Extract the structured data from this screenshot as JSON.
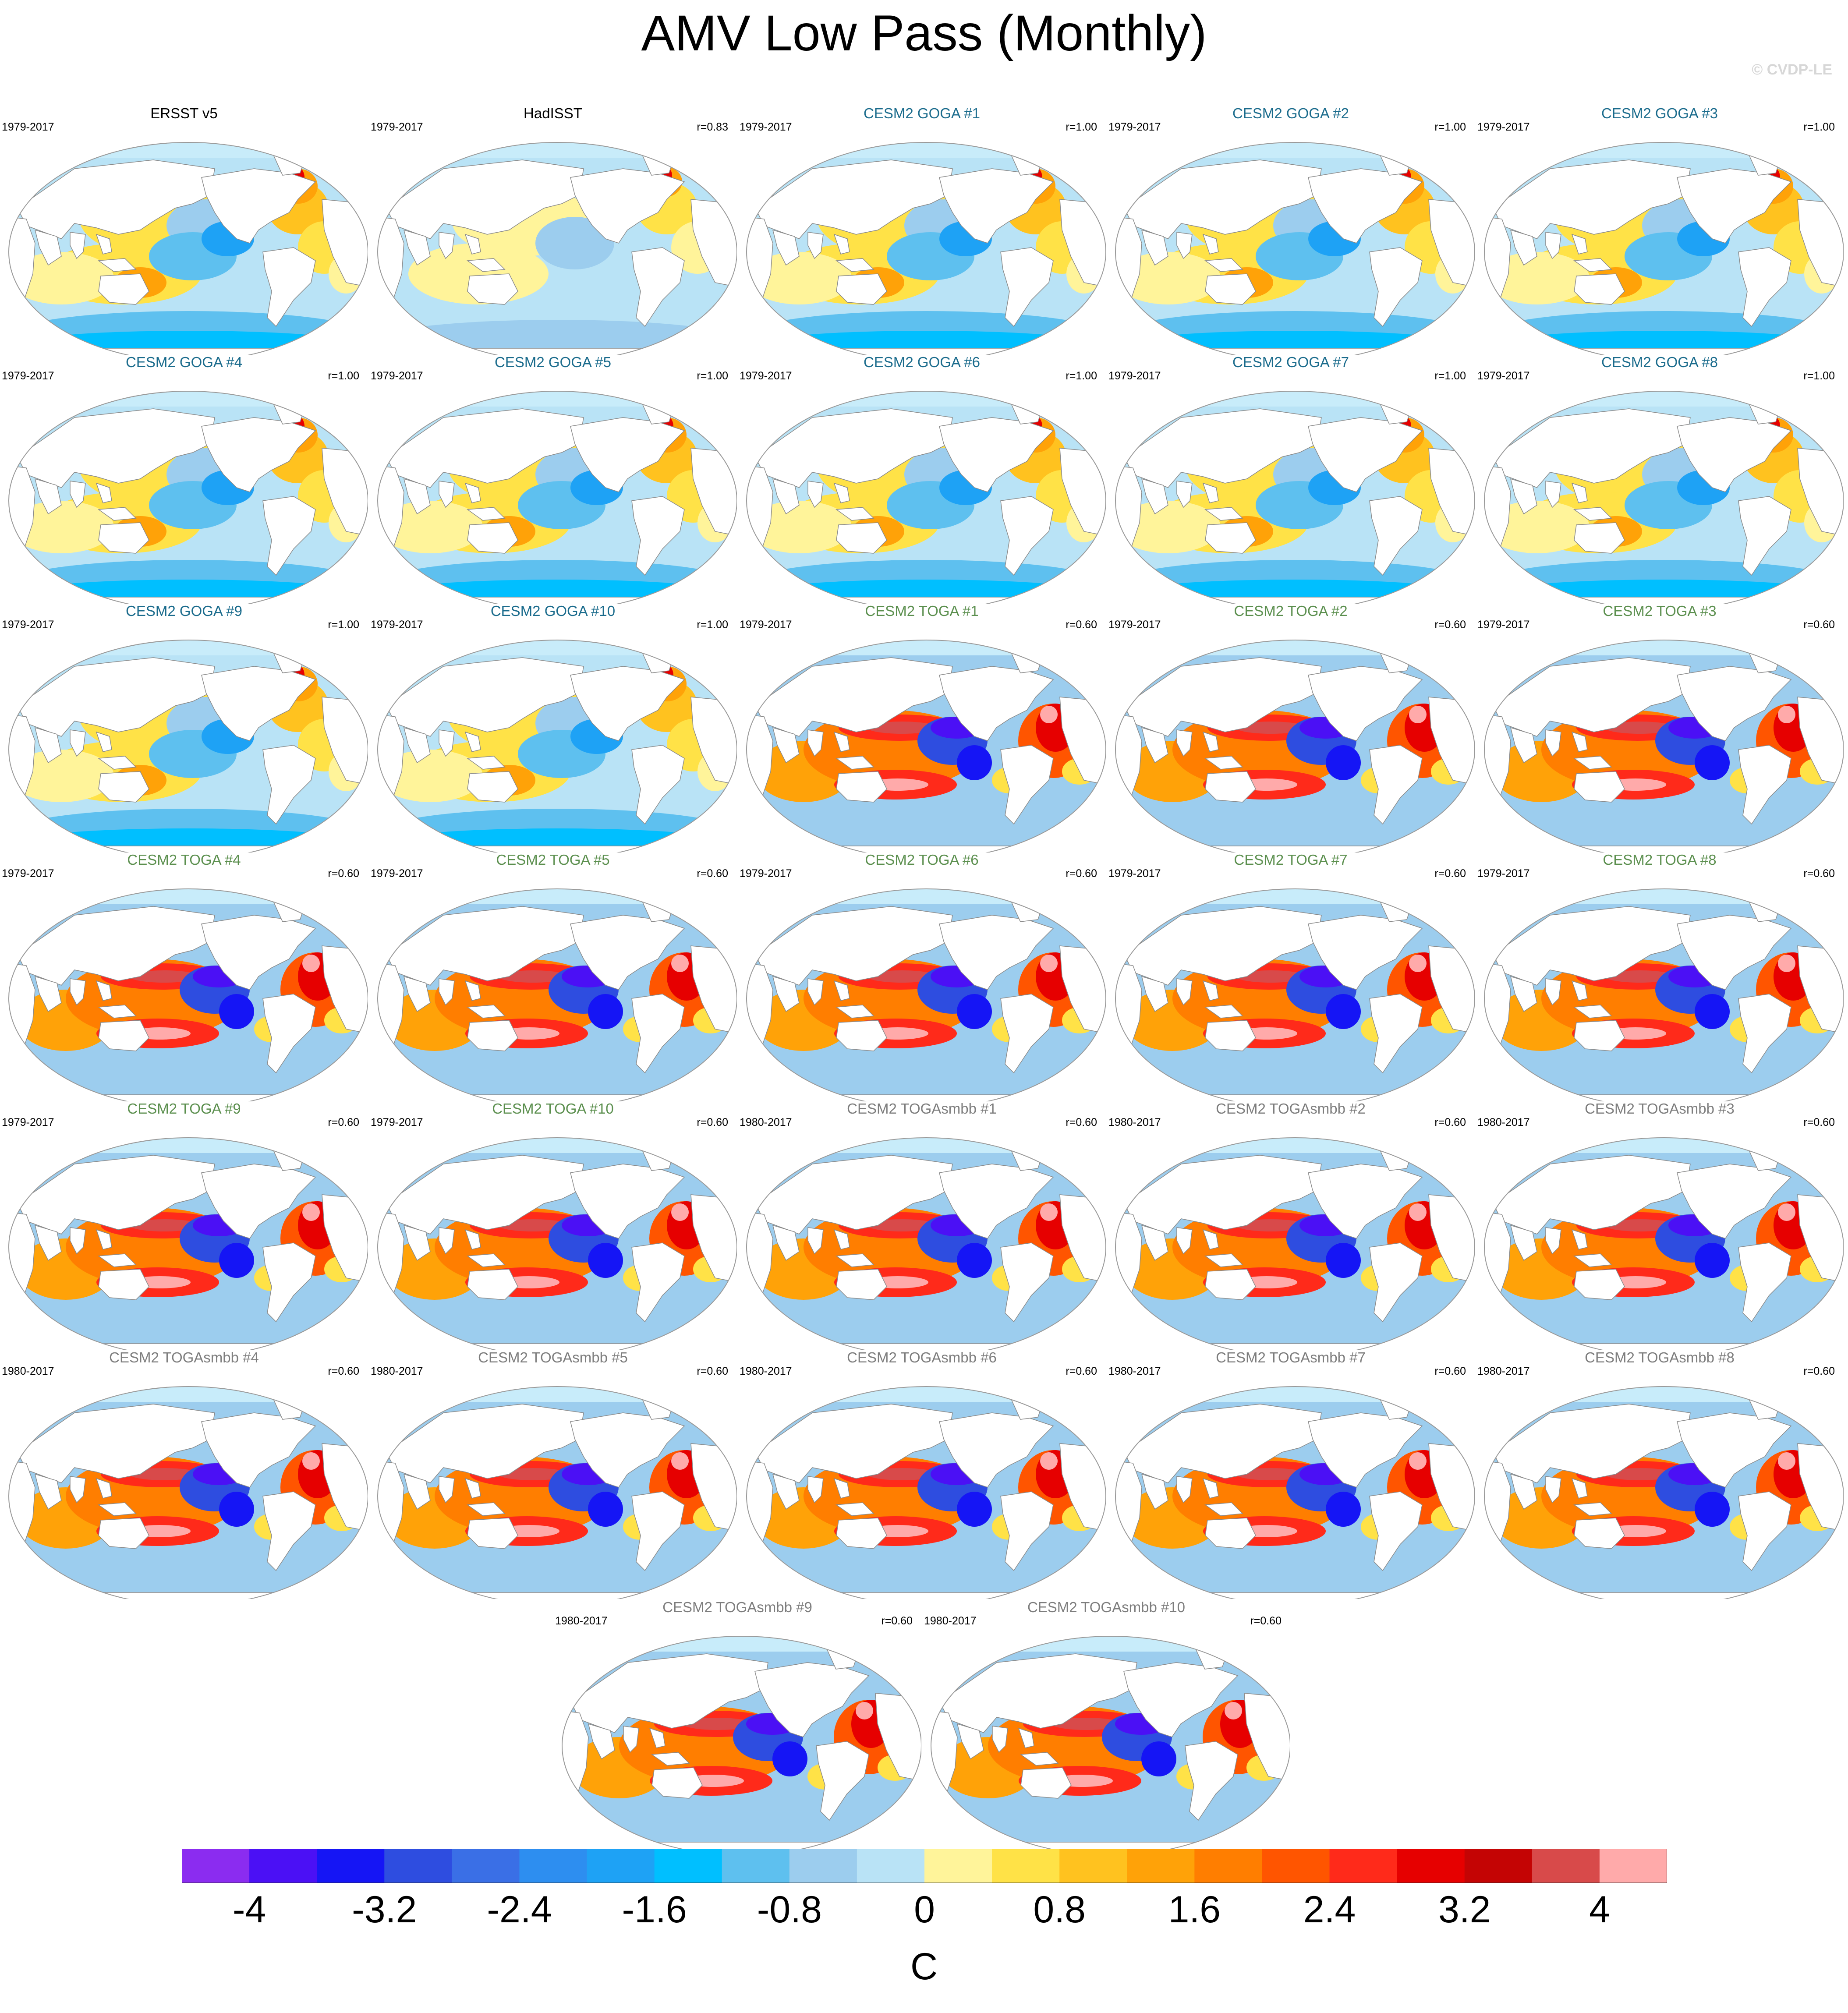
{
  "title": "AMV Low Pass (Monthly)",
  "watermark": "© CVDP-LE",
  "colors": {
    "obs_title": "#000000",
    "goga_title": "#1a6b8c",
    "toga_title": "#5b8f4e",
    "togasmbb_title": "#7d7d7d",
    "land": "#ffffff",
    "coast": "#8a8a8a",
    "ice_band": "#c8ecfa"
  },
  "panels": [
    {
      "title": "ERSST v5",
      "years": "1979-2017",
      "r": "",
      "group": "obs",
      "pattern": "obs"
    },
    {
      "title": "HadISST",
      "years": "1979-2017",
      "r": "r=0.83",
      "group": "obs",
      "pattern": "obs_weak"
    },
    {
      "title": "CESM2 GOGA #1",
      "years": "1979-2017",
      "r": "r=1.00",
      "group": "goga",
      "pattern": "obs"
    },
    {
      "title": "CESM2 GOGA #2",
      "years": "1979-2017",
      "r": "r=1.00",
      "group": "goga",
      "pattern": "obs"
    },
    {
      "title": "CESM2 GOGA #3",
      "years": "1979-2017",
      "r": "r=1.00",
      "group": "goga",
      "pattern": "obs"
    },
    {
      "title": "CESM2 GOGA #4",
      "years": "1979-2017",
      "r": "r=1.00",
      "group": "goga",
      "pattern": "obs"
    },
    {
      "title": "CESM2 GOGA #5",
      "years": "1979-2017",
      "r": "r=1.00",
      "group": "goga",
      "pattern": "obs"
    },
    {
      "title": "CESM2 GOGA #6",
      "years": "1979-2017",
      "r": "r=1.00",
      "group": "goga",
      "pattern": "obs"
    },
    {
      "title": "CESM2 GOGA #7",
      "years": "1979-2017",
      "r": "r=1.00",
      "group": "goga",
      "pattern": "obs"
    },
    {
      "title": "CESM2 GOGA #8",
      "years": "1979-2017",
      "r": "r=1.00",
      "group": "goga",
      "pattern": "obs"
    },
    {
      "title": "CESM2 GOGA #9",
      "years": "1979-2017",
      "r": "r=1.00",
      "group": "goga",
      "pattern": "obs"
    },
    {
      "title": "CESM2 GOGA #10",
      "years": "1979-2017",
      "r": "r=1.00",
      "group": "goga",
      "pattern": "obs"
    },
    {
      "title": "CESM2 TOGA #1",
      "years": "1979-2017",
      "r": "r=0.60",
      "group": "toga",
      "pattern": "model"
    },
    {
      "title": "CESM2 TOGA #2",
      "years": "1979-2017",
      "r": "r=0.60",
      "group": "toga",
      "pattern": "model"
    },
    {
      "title": "CESM2 TOGA #3",
      "years": "1979-2017",
      "r": "r=0.60",
      "group": "toga",
      "pattern": "model"
    },
    {
      "title": "CESM2 TOGA #4",
      "years": "1979-2017",
      "r": "r=0.60",
      "group": "toga",
      "pattern": "model"
    },
    {
      "title": "CESM2 TOGA #5",
      "years": "1979-2017",
      "r": "r=0.60",
      "group": "toga",
      "pattern": "model"
    },
    {
      "title": "CESM2 TOGA #6",
      "years": "1979-2017",
      "r": "r=0.60",
      "group": "toga",
      "pattern": "model"
    },
    {
      "title": "CESM2 TOGA #7",
      "years": "1979-2017",
      "r": "r=0.60",
      "group": "toga",
      "pattern": "model"
    },
    {
      "title": "CESM2 TOGA #8",
      "years": "1979-2017",
      "r": "r=0.60",
      "group": "toga",
      "pattern": "model"
    },
    {
      "title": "CESM2 TOGA #9",
      "years": "1979-2017",
      "r": "r=0.60",
      "group": "toga",
      "pattern": "model"
    },
    {
      "title": "CESM2 TOGA #10",
      "years": "1979-2017",
      "r": "r=0.60",
      "group": "toga",
      "pattern": "model"
    },
    {
      "title": "CESM2 TOGAsmbb #1",
      "years": "1980-2017",
      "r": "r=0.60",
      "group": "togasmbb",
      "pattern": "model"
    },
    {
      "title": "CESM2 TOGAsmbb #2",
      "years": "1980-2017",
      "r": "r=0.60",
      "group": "togasmbb",
      "pattern": "model"
    },
    {
      "title": "CESM2 TOGAsmbb #3",
      "years": "1980-2017",
      "r": "r=0.60",
      "group": "togasmbb",
      "pattern": "model"
    },
    {
      "title": "CESM2 TOGAsmbb #4",
      "years": "1980-2017",
      "r": "r=0.60",
      "group": "togasmbb",
      "pattern": "model"
    },
    {
      "title": "CESM2 TOGAsmbb #5",
      "years": "1980-2017",
      "r": "r=0.60",
      "group": "togasmbb",
      "pattern": "model"
    },
    {
      "title": "CESM2 TOGAsmbb #6",
      "years": "1980-2017",
      "r": "r=0.60",
      "group": "togasmbb",
      "pattern": "model"
    },
    {
      "title": "CESM2 TOGAsmbb #7",
      "years": "1980-2017",
      "r": "r=0.60",
      "group": "togasmbb",
      "pattern": "model"
    },
    {
      "title": "CESM2 TOGAsmbb #8",
      "years": "1980-2017",
      "r": "r=0.60",
      "group": "togasmbb",
      "pattern": "model"
    },
    {
      "title": "CESM2 TOGAsmbb #9",
      "years": "1980-2017",
      "r": "r=0.60",
      "group": "togasmbb",
      "pattern": "model"
    },
    {
      "title": "CESM2 TOGAsmbb #10",
      "years": "1980-2017",
      "r": "r=0.60",
      "group": "togasmbb",
      "pattern": "model"
    }
  ],
  "colorbar": {
    "colors": [
      "#8b2cf0",
      "#4b10f5",
      "#1515f5",
      "#2e4de0",
      "#3a6fe6",
      "#2d8ef0",
      "#1ea2f5",
      "#00bfff",
      "#5ec0ef",
      "#9ccdee",
      "#b9e3f6",
      "#fff49a",
      "#ffe247",
      "#ffc21f",
      "#ffa208",
      "#ff7e00",
      "#ff5500",
      "#ff2a1a",
      "#e60000",
      "#c40404",
      "#d84a4a",
      "#ffaaaa"
    ],
    "labels": [
      "-4",
      "-3.2",
      "-2.4",
      "-1.6",
      "-0.8",
      "0",
      "0.8",
      "1.6",
      "2.4",
      "3.2",
      "4"
    ],
    "units": "C"
  }
}
